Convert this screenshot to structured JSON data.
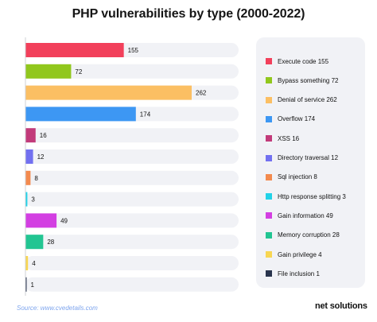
{
  "chart_data": {
    "type": "bar",
    "orientation": "horizontal",
    "title": "PHP vulnerabilities by type (2000-2022)",
    "categories": [
      "Execute code",
      "Bypass something",
      "Denial of service",
      "Overflow",
      "XSS",
      "Directory traversal",
      "Sql injection",
      "Http response splitting",
      "Gain information",
      "Memory corruption",
      "Gain privilege",
      "File inclusion"
    ],
    "values": [
      155,
      72,
      262,
      174,
      16,
      12,
      8,
      3,
      49,
      28,
      4,
      1
    ],
    "colors": [
      "#f2405b",
      "#91c71d",
      "#fbbf63",
      "#3d97f3",
      "#c23a7a",
      "#7270f0",
      "#f38a4e",
      "#22d2e8",
      "#d33fe2",
      "#22c592",
      "#f8d652",
      "#29344d"
    ],
    "legend": [
      "Execute code 155",
      "Bypass something 72",
      "Denial of service 262",
      "Overflow 174",
      "XSS 16",
      "Directory traversal 12",
      "Sql injection 8",
      "Http response splitting 3",
      "Gain information 49",
      "Memory corruption 28",
      "Gain privilege 4",
      "File inclusion 1"
    ],
    "xlim": [
      0,
      262
    ],
    "grid": false,
    "legend_placement": "right"
  },
  "source": "Source: www.cvedetails.com",
  "brand": "net solutions",
  "colors": {
    "track": "#f1f2f6",
    "axis": "#cfd1d6",
    "value_label": "#111111"
  }
}
